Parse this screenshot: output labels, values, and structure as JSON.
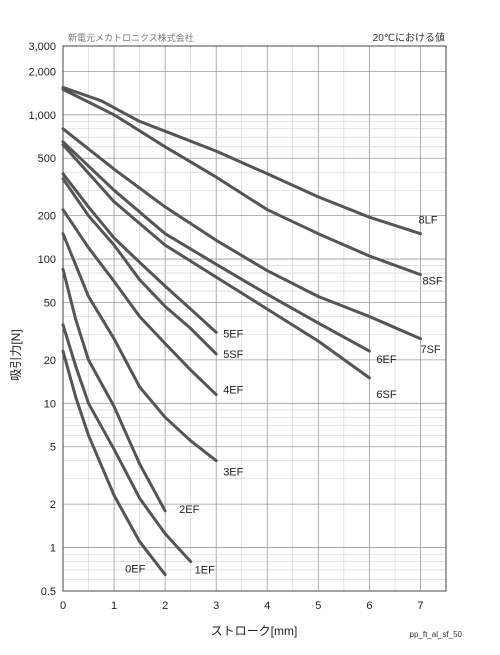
{
  "chart_data": {
    "type": "line",
    "company": "新電元メカトロニクス株式会社",
    "condition_note": "20℃における値",
    "xlabel": "ストローク[mm]",
    "ylabel": "吸引力[N]",
    "figure_code": "pp_ft_al_sf_50",
    "x_ticks": [
      "0",
      "1",
      "2",
      "3",
      "4",
      "5",
      "6",
      "7"
    ],
    "xlim": [
      0,
      7.5
    ],
    "y_scale": "log",
    "ylim": [
      0.5,
      3000
    ],
    "y_tick_values": [
      0.5,
      1,
      2,
      5,
      10,
      20,
      50,
      100,
      200,
      500,
      1000,
      2000,
      3000
    ],
    "y_tick_labels": [
      "0.5",
      "1",
      "2",
      "5",
      "10",
      "20",
      "50",
      "100",
      "200",
      "500",
      "1,000",
      "2,000",
      "3,000"
    ],
    "grid": true,
    "line_color": "#555555",
    "series": [
      {
        "name": "0EF",
        "points": [
          [
            0,
            23
          ],
          [
            0.25,
            11
          ],
          [
            0.5,
            6
          ],
          [
            1,
            2.3
          ],
          [
            1.5,
            1.1
          ],
          [
            2,
            0.65
          ]
        ]
      },
      {
        "name": "1EF",
        "points": [
          [
            0,
            35
          ],
          [
            0.25,
            18
          ],
          [
            0.5,
            10
          ],
          [
            1,
            4.8
          ],
          [
            1.5,
            2.2
          ],
          [
            2,
            1.25
          ],
          [
            2.5,
            0.8
          ]
        ]
      },
      {
        "name": "2EF",
        "points": [
          [
            0,
            85
          ],
          [
            0.25,
            38
          ],
          [
            0.5,
            20
          ],
          [
            1,
            9.5
          ],
          [
            1.5,
            3.8
          ],
          [
            2,
            1.8
          ]
        ]
      },
      {
        "name": "3EF",
        "points": [
          [
            0,
            150
          ],
          [
            0.5,
            55
          ],
          [
            1,
            28
          ],
          [
            1.5,
            13
          ],
          [
            2,
            8
          ],
          [
            2.5,
            5.5
          ],
          [
            3,
            4
          ]
        ]
      },
      {
        "name": "4EF",
        "points": [
          [
            0,
            220
          ],
          [
            0.5,
            120
          ],
          [
            1,
            70
          ],
          [
            1.5,
            40
          ],
          [
            2,
            26
          ],
          [
            2.5,
            17
          ],
          [
            3,
            11.5
          ]
        ]
      },
      {
        "name": "5SF",
        "points": [
          [
            0,
            360
          ],
          [
            0.5,
            200
          ],
          [
            1,
            125
          ],
          [
            1.5,
            72
          ],
          [
            2,
            47
          ],
          [
            2.5,
            33
          ],
          [
            3,
            22
          ]
        ]
      },
      {
        "name": "5EF",
        "points": [
          [
            0,
            390
          ],
          [
            0.5,
            230
          ],
          [
            1,
            140
          ],
          [
            1.5,
            95
          ],
          [
            2,
            65
          ],
          [
            2.5,
            45
          ],
          [
            3,
            31
          ]
        ]
      },
      {
        "name": "6SF",
        "points": [
          [
            0,
            620
          ],
          [
            1,
            250
          ],
          [
            2,
            125
          ],
          [
            3,
            75
          ],
          [
            4,
            45
          ],
          [
            5,
            27
          ],
          [
            6,
            15
          ]
        ]
      },
      {
        "name": "6EF",
        "points": [
          [
            0,
            650
          ],
          [
            1,
            300
          ],
          [
            2,
            150
          ],
          [
            3,
            92
          ],
          [
            4,
            57
          ],
          [
            5,
            36
          ],
          [
            6,
            23
          ]
        ]
      },
      {
        "name": "7SF",
        "points": [
          [
            0,
            800
          ],
          [
            1,
            420
          ],
          [
            2,
            230
          ],
          [
            3,
            135
          ],
          [
            4,
            83
          ],
          [
            5,
            55
          ],
          [
            6,
            40
          ],
          [
            7,
            28
          ]
        ]
      },
      {
        "name": "8SF",
        "points": [
          [
            0,
            1500
          ],
          [
            1,
            1000
          ],
          [
            2,
            600
          ],
          [
            3,
            370
          ],
          [
            4,
            220
          ],
          [
            5,
            150
          ],
          [
            6,
            105
          ],
          [
            7,
            78
          ]
        ]
      },
      {
        "name": "8LF",
        "points": [
          [
            0,
            1550
          ],
          [
            0.75,
            1250
          ],
          [
            1.5,
            900
          ],
          [
            2,
            770
          ],
          [
            3,
            560
          ],
          [
            4,
            390
          ],
          [
            5,
            270
          ],
          [
            6,
            195
          ],
          [
            7,
            150
          ]
        ]
      }
    ]
  }
}
